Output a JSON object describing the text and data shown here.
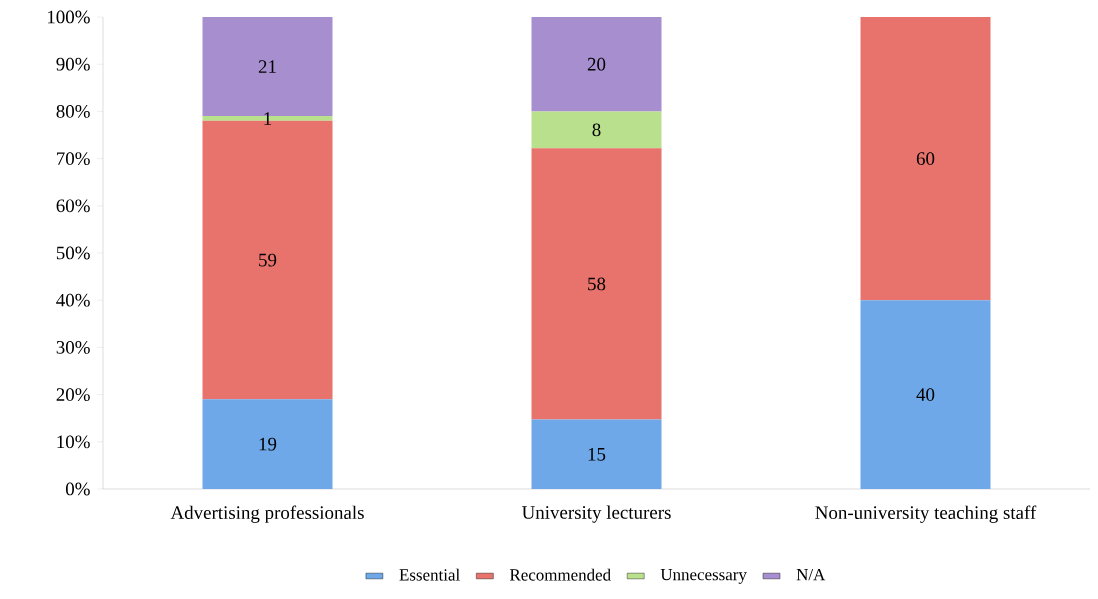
{
  "chart_data": {
    "type": "bar",
    "stacked": true,
    "categories": [
      "Advertising professionals",
      "University lecturers",
      "Non-university teaching staff"
    ],
    "series": [
      {
        "name": "Essential",
        "color": "#6fa8e8",
        "values": [
          19,
          14.7,
          40
        ],
        "value_labels": [
          "19",
          "15",
          "40"
        ]
      },
      {
        "name": "Recommended",
        "color": "#e8736c",
        "values": [
          59,
          57.5,
          60
        ],
        "value_labels": [
          "59",
          "58",
          "60"
        ]
      },
      {
        "name": "Unnecessary",
        "color": "#b9e08c",
        "values": [
          1,
          7.8,
          null
        ],
        "value_labels": [
          "1",
          "8",
          null
        ]
      },
      {
        "name": "N/A",
        "color": "#a78fcf",
        "values": [
          21,
          20,
          null
        ],
        "value_labels": [
          "21",
          "20",
          null
        ]
      }
    ],
    "ylim": [
      0,
      100
    ],
    "yticks": [
      {
        "value": 0,
        "label": "0%"
      },
      {
        "value": 10,
        "label": "10%"
      },
      {
        "value": 20,
        "label": "20%"
      },
      {
        "value": 30,
        "label": "30%"
      },
      {
        "value": 40,
        "label": "40%"
      },
      {
        "value": 50,
        "label": "50%"
      },
      {
        "value": 60,
        "label": "60%"
      },
      {
        "value": 70,
        "label": "70%"
      },
      {
        "value": 80,
        "label": "80%"
      },
      {
        "value": 90,
        "label": "90%"
      },
      {
        "value": 100,
        "label": "100%"
      }
    ],
    "grid": false,
    "legend": "bottom"
  }
}
